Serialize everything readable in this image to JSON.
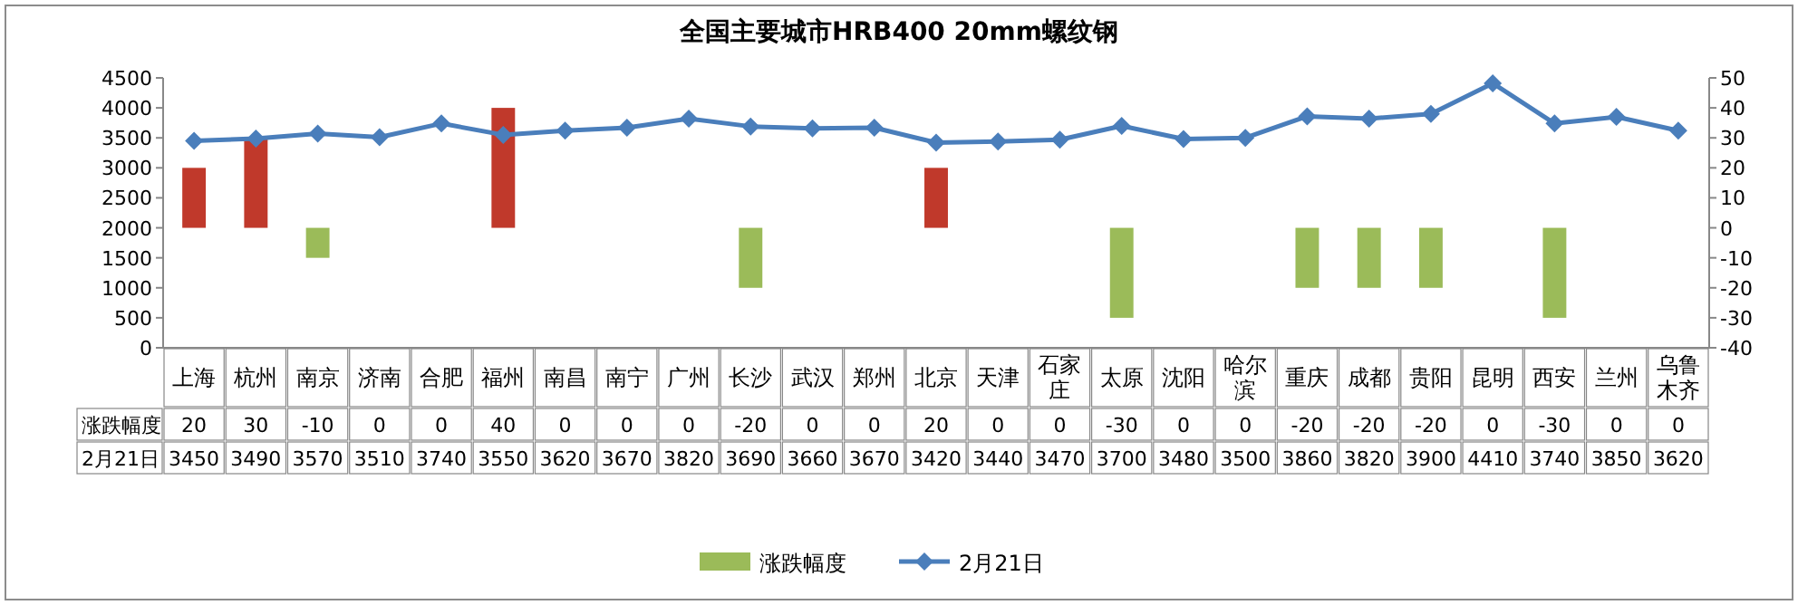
{
  "chart_data": {
    "type": "bar",
    "title": "全国主要城市HRB400 20mm螺纹钢",
    "categories": [
      "上海",
      "杭州",
      "南京",
      "济南",
      "合肥",
      "福州",
      "南昌",
      "南宁",
      "广州",
      "长沙",
      "武汉",
      "郑州",
      "北京",
      "天津",
      "石家庄",
      "太原",
      "沈阳",
      "哈尔滨",
      "重庆",
      "成都",
      "贵阳",
      "昆明",
      "西安",
      "兰州",
      "乌鲁木齐"
    ],
    "series": [
      {
        "name": "涨跌幅度",
        "axis": "y2",
        "color": "#9bbb59",
        "colors": [
          "#c0392b",
          "#c0392b",
          "#9bbb59",
          "#9bbb59",
          "#9bbb59",
          "#c0392b",
          "#9bbb59",
          "#9bbb59",
          "#9bbb59",
          "#9bbb59",
          "#9bbb59",
          "#9bbb59",
          "#c0392b",
          "#9bbb59",
          "#9bbb59",
          "#9bbb59",
          "#9bbb59",
          "#9bbb59",
          "#9bbb59",
          "#9bbb59",
          "#9bbb59",
          "#9bbb59",
          "#9bbb59",
          "#9bbb59",
          "#9bbb59"
        ],
        "values": [
          20,
          30,
          -10,
          0,
          0,
          40,
          0,
          0,
          0,
          -20,
          0,
          0,
          20,
          0,
          0,
          -30,
          0,
          0,
          -20,
          -20,
          -20,
          0,
          -30,
          0,
          0
        ]
      },
      {
        "name": "2月21日",
        "type": "line",
        "color": "#4a7ebb",
        "marker": "diamond",
        "line_style": "solid",
        "values": [
          3450,
          3490,
          3570,
          3510,
          3740,
          3550,
          3620,
          3670,
          3820,
          3690,
          3660,
          3670,
          3420,
          3440,
          3470,
          3700,
          3480,
          3500,
          3860,
          3820,
          3900,
          4410,
          3740,
          3850,
          3620
        ]
      }
    ],
    "ylim": [
      0,
      4500
    ],
    "yticks": [
      0,
      500,
      1000,
      1500,
      2000,
      2500,
      3000,
      3500,
      4000,
      4500
    ],
    "y2lim": [
      -40,
      50
    ],
    "y2ticks": [
      -40,
      -30,
      -20,
      -10,
      0,
      10,
      20,
      30,
      40,
      50
    ],
    "data_labels": true,
    "legend": "bottom",
    "grid": false
  }
}
